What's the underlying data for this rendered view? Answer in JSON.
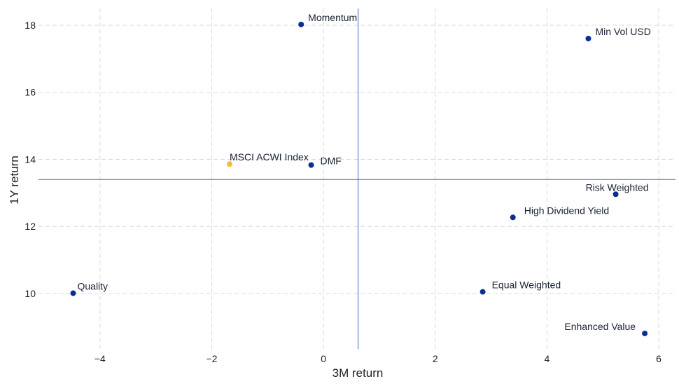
{
  "chart_data": {
    "type": "scatter",
    "xlabel": "3M return",
    "ylabel": "1Y return",
    "xlim": [
      -5.1,
      6.3
    ],
    "ylim": [
      8.35,
      18.5
    ],
    "xticks": [
      -4,
      -2,
      0,
      2,
      4,
      6
    ],
    "yticks": [
      10,
      12,
      14,
      16,
      18
    ],
    "reference_lines": {
      "x": 0.62,
      "y": 13.4
    },
    "grid": true,
    "colors": {
      "default": "#0a2f91",
      "highlight": "#f3be3a",
      "reference": "#4a64b5",
      "grid": "#d9d9d9"
    },
    "points": [
      {
        "label": "Momentum",
        "x": -0.4,
        "y": 18.02,
        "highlight": false
      },
      {
        "label": "Min Vol USD",
        "x": 4.74,
        "y": 17.6,
        "highlight": false
      },
      {
        "label": "MSCI ACWI Index",
        "x": -1.68,
        "y": 13.86,
        "highlight": true
      },
      {
        "label": "DMF",
        "x": -0.22,
        "y": 13.83,
        "highlight": false
      },
      {
        "label": "Risk Weighted",
        "x": 5.23,
        "y": 12.96,
        "highlight": false
      },
      {
        "label": "High Dividend Yield",
        "x": 3.39,
        "y": 12.27,
        "highlight": false
      },
      {
        "label": "Quality",
        "x": -4.48,
        "y": 10.01,
        "highlight": false
      },
      {
        "label": "Equal Weighted",
        "x": 2.85,
        "y": 10.05,
        "highlight": false
      },
      {
        "label": "Enhanced Value",
        "x": 5.75,
        "y": 8.81,
        "highlight": false
      }
    ]
  }
}
